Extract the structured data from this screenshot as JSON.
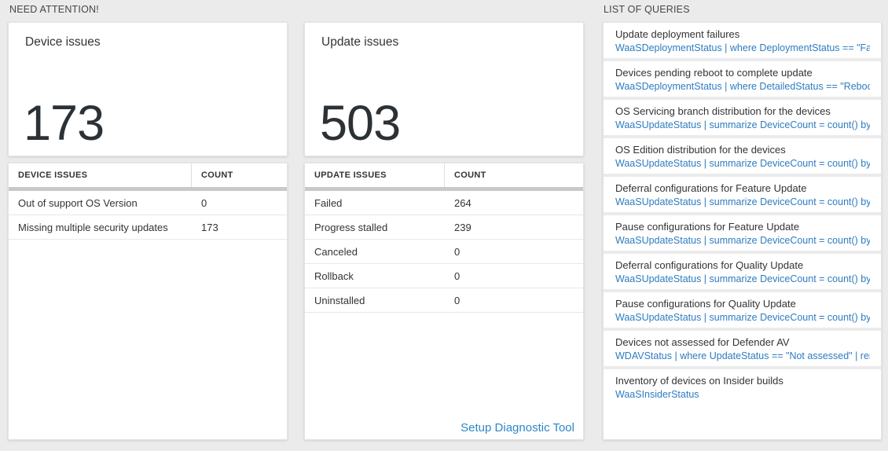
{
  "sections": {
    "need_attention_label": "NEED ATTENTION!",
    "queries_label": "LIST OF QUERIES"
  },
  "device_card": {
    "title": "Device issues",
    "count": "173"
  },
  "device_table": {
    "headers": [
      "DEVICE ISSUES",
      "COUNT"
    ],
    "rows": [
      {
        "issue": "Out of support OS Version",
        "count": "0"
      },
      {
        "issue": "Missing multiple security updates",
        "count": "173"
      }
    ]
  },
  "update_card": {
    "title": "Update issues",
    "count": "503"
  },
  "update_table": {
    "headers": [
      "UPDATE ISSUES",
      "COUNT"
    ],
    "rows": [
      {
        "issue": "Failed",
        "count": "264"
      },
      {
        "issue": "Progress stalled",
        "count": "239"
      },
      {
        "issue": "Canceled",
        "count": "0"
      },
      {
        "issue": "Rollback",
        "count": "0"
      },
      {
        "issue": "Uninstalled",
        "count": "0"
      }
    ],
    "footer_link": "Setup Diagnostic Tool"
  },
  "query_list": {
    "items": [
      {
        "title": "Update deployment failures",
        "query": "WaaSDeploymentStatus | where DeploymentStatus == \"Failed\" |..."
      },
      {
        "title": "Devices pending reboot to complete update",
        "query": "WaaSDeploymentStatus | where DetailedStatus == \"Reboot pend..."
      },
      {
        "title": "OS Servicing branch distribution for the devices",
        "query": "WaaSUpdateStatus | summarize DeviceCount = count() by OSSer..."
      },
      {
        "title": "OS Edition distribution for the devices",
        "query": "WaaSUpdateStatus | summarize DeviceCount = count() by OSEdit..."
      },
      {
        "title": "Deferral configurations for Feature Update",
        "query": "WaaSUpdateStatus | summarize DeviceCount = count() by Featur..."
      },
      {
        "title": "Pause configurations for Feature Update",
        "query": "WaaSUpdateStatus | summarize DeviceCount = count() by Featur..."
      },
      {
        "title": "Deferral configurations for Quality Update",
        "query": "WaaSUpdateStatus | summarize DeviceCount = count() by Qualit..."
      },
      {
        "title": "Pause configurations for Quality Update",
        "query": "WaaSUpdateStatus | summarize DeviceCount = count() by Qualit..."
      },
      {
        "title": "Devices not assessed for Defender AV",
        "query": "WDAVStatus | where UpdateStatus == \"Not assessed\" | render ta..."
      },
      {
        "title": "Inventory of devices on Insider builds",
        "query": "WaaSInsiderStatus"
      }
    ]
  },
  "colors": {
    "page_bg": "#ebebeb",
    "link_blue": "#2e86c8",
    "query_blue": "#2e7cc0",
    "scrollbar_gray": "#c9c9c9",
    "text_dark": "#333333"
  }
}
